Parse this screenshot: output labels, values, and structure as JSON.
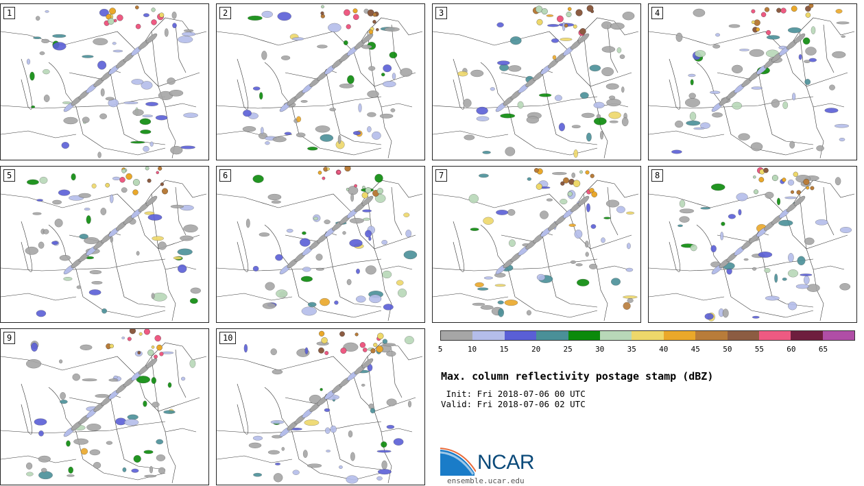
{
  "panels": [
    {
      "label": "1"
    },
    {
      "label": "2"
    },
    {
      "label": "3"
    },
    {
      "label": "4"
    },
    {
      "label": "5"
    },
    {
      "label": "6"
    },
    {
      "label": "7"
    },
    {
      "label": "8"
    },
    {
      "label": "9"
    },
    {
      "label": "10"
    }
  ],
  "colorbar": {
    "ticks": [
      "5",
      "10",
      "15",
      "20",
      "25",
      "30",
      "35",
      "40",
      "45",
      "50",
      "55",
      "60",
      "65"
    ],
    "colors": [
      "#a6a6a6",
      "#b4bdea",
      "#5a5fd6",
      "#4a9098",
      "#0b8a0b",
      "#b8d8b8",
      "#eed86a",
      "#eaa82a",
      "#b87c3a",
      "#8c5c42",
      "#ee5a82",
      "#6e1e3e",
      "#b04ea6"
    ]
  },
  "title": "Max. column reflectivity postage stamp (dBZ)",
  "init": " Init: Fri 2018-07-06 00 UTC",
  "valid": "Valid: Fri 2018-07-06 02 UTC",
  "logo": {
    "text": "NCAR",
    "site": "ensemble.ucar.edu"
  }
}
